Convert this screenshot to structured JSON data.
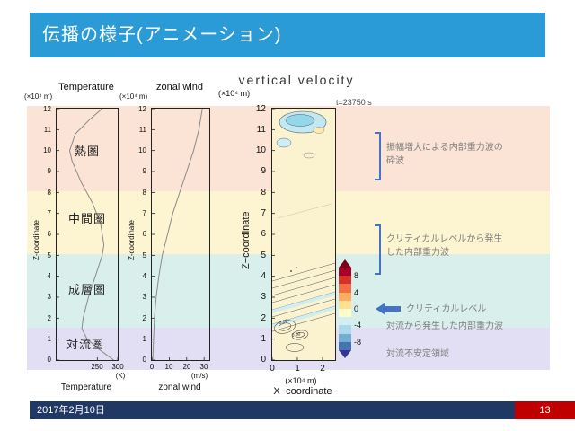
{
  "slide": {
    "title": "伝播の様子(アニメーション)",
    "footer": {
      "date": "2017年2月10日",
      "page": "13"
    },
    "colors": {
      "header_bg": "#2b9bd7",
      "footer_bg": "#1f3864",
      "page_bg": "#c00000",
      "annotation_blue": "#4472c4",
      "annotation_text": "#7f7f7f"
    }
  },
  "layers": [
    {
      "label": "熱圏",
      "z_range": [
        8,
        12
      ],
      "band_color": "#fbe3d5"
    },
    {
      "label": "中間圏",
      "z_range": [
        5,
        8
      ],
      "band_color": "#fdf4d1"
    },
    {
      "label": "成層圏",
      "z_range": [
        1.5,
        5
      ],
      "band_color": "#d9efec"
    },
    {
      "label": "対流圏",
      "z_range": [
        0,
        1.5
      ],
      "band_color": "#e2def3"
    }
  ],
  "annotations": [
    {
      "marker": "bracket",
      "text_lines": [
        "振幅増大による内部重力波の",
        "砕波"
      ]
    },
    {
      "marker": "bracket",
      "text_lines": [
        "クリティカルレベルから発生",
        "した内部重力波"
      ]
    },
    {
      "marker": "arrow-left",
      "text_lines": [
        "クリティカルレベル"
      ]
    },
    {
      "marker": "none",
      "text_lines": [
        "対流から発生した内部重力波"
      ]
    },
    {
      "marker": "none",
      "text_lines": [
        "対流不安定領域"
      ]
    }
  ],
  "chart_data": [
    {
      "type": "line",
      "title": "Temperature",
      "ylabel": "Z-coordinate",
      "y_unit": "(×10⁴ m)",
      "xlabel": "Temperature",
      "x_unit": "(K)",
      "xlim": [
        150,
        300
      ],
      "ylim": [
        0,
        12
      ],
      "x_ticks": [
        250,
        300
      ],
      "y_ticks_desc": [
        12,
        11,
        10,
        9,
        8,
        7,
        6,
        5,
        4,
        3,
        2,
        1,
        0
      ],
      "series": [
        {
          "name": "temperature-profile",
          "points": [
            [
              290,
              0
            ],
            [
              255,
              0.5
            ],
            [
              225,
              1
            ],
            [
              212,
              1.5
            ],
            [
              215,
              2
            ],
            [
              228,
              3
            ],
            [
              245,
              4
            ],
            [
              262,
              5
            ],
            [
              266,
              5.5
            ],
            [
              258,
              6.5
            ],
            [
              238,
              7.5
            ],
            [
              210,
              8.5
            ],
            [
              188,
              9.5
            ],
            [
              182,
              10
            ],
            [
              196,
              10.8
            ],
            [
              232,
              11.5
            ],
            [
              262,
              12
            ]
          ]
        }
      ]
    },
    {
      "type": "line",
      "title": "zonal wind",
      "ylabel": "Z-coordinate",
      "y_unit": "(×10⁴ m)",
      "xlabel": "zonal wind",
      "x_unit": "(m/s)",
      "xlim": [
        0,
        33
      ],
      "ylim": [
        0,
        12
      ],
      "x_ticks": [
        0,
        10,
        20,
        30
      ],
      "y_ticks_desc": [
        12,
        11,
        10,
        9,
        8,
        7,
        6,
        5,
        4,
        3,
        2,
        1,
        0
      ],
      "series": [
        {
          "name": "zonal-wind-profile",
          "points": [
            [
              0.5,
              0
            ],
            [
              1,
              1
            ],
            [
              1.5,
              2
            ],
            [
              2.5,
              3
            ],
            [
              4,
              4
            ],
            [
              6,
              5
            ],
            [
              9,
              6
            ],
            [
              12,
              7
            ],
            [
              16,
              8
            ],
            [
              20,
              9
            ],
            [
              24,
              10
            ],
            [
              27,
              11
            ],
            [
              29,
              12
            ]
          ]
        }
      ]
    },
    {
      "type": "heatmap",
      "title": "vertical velocity",
      "time_label": "t=23750 s",
      "ylabel": "Z−coordinate",
      "y_unit": "(×10⁴ m)",
      "xlabel": "X−coordinate",
      "x_unit": "(×10⁴ m)",
      "xlim": [
        0,
        2.5
      ],
      "ylim": [
        0,
        12
      ],
      "x_ticks": [
        0,
        1,
        2
      ],
      "y_ticks_desc": [
        12,
        11,
        10,
        9,
        8,
        7,
        6,
        5,
        4,
        3,
        2,
        1,
        0
      ],
      "contour_labels": [
        "0.00",
        "0.00"
      ],
      "colorbar": {
        "tick_labels": [
          "8",
          "4",
          "0",
          "-4",
          "-8"
        ],
        "colors": [
          "#a50026",
          "#d73027",
          "#f46d43",
          "#fdae61",
          "#fee090",
          "#fdfbc8",
          "#d2eef2",
          "#abd9e9",
          "#74add1",
          "#4575b1"
        ],
        "top_color": "#7a0018",
        "bottom_color": "#313695"
      },
      "description": "wave-breaking cells near top, slanted gravity-wave phase lines at mid levels, convective cells near bottom left"
    }
  ]
}
